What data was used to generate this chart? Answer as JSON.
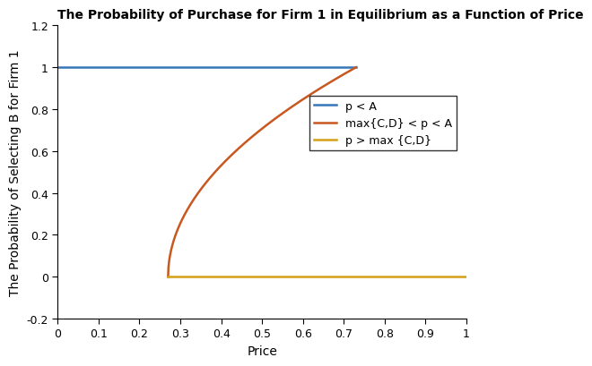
{
  "title": "The Probability of Purchase for Firm 1 in Equilibrium as a Function of Price",
  "xlabel": "Price",
  "ylabel": "The Probability of Selecting B for Firm 1",
  "xlim": [
    0,
    1
  ],
  "ylim": [
    -0.2,
    1.2
  ],
  "xticks": [
    0,
    0.1,
    0.2,
    0.3,
    0.4,
    0.5,
    0.6,
    0.7,
    0.8,
    0.9,
    1.0
  ],
  "yticks": [
    -0.2,
    0.0,
    0.2,
    0.4,
    0.6,
    0.8,
    1.0,
    1.2
  ],
  "p_low": 0.27,
  "p_high": 0.73,
  "blue_color": "#3777b8",
  "orange_color": "#c85820",
  "yellow_color": "#d4a017",
  "legend_labels": [
    "p < A",
    "max{C,D} < p < A",
    "p > max {C,D}"
  ],
  "line_width": 1.8,
  "title_fontsize": 10,
  "axis_fontsize": 10,
  "tick_fontsize": 9,
  "legend_fontsize": 9
}
